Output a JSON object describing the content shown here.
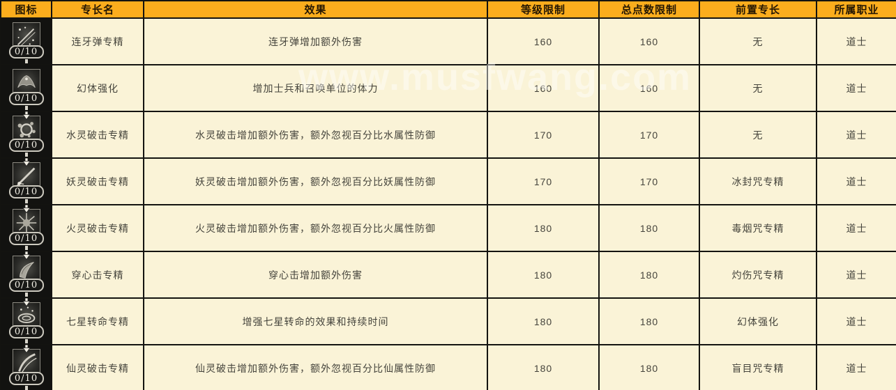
{
  "watermark": "www.musfwang.com",
  "colors": {
    "header_bg": "#fbad1d",
    "header_text": "#241703",
    "cell_bg": "#faf3d7",
    "cell_text": "#45443c",
    "border": "#131310",
    "icon_cell_bg": "#121210",
    "badge_text": "#f4f1e7"
  },
  "table": {
    "headers": [
      "图标",
      "专长名",
      "效果",
      "等级限制",
      "总点数限制",
      "前置专长",
      "所属职业"
    ],
    "rows": [
      {
        "icon": "spark-volley-icon",
        "arrow": false,
        "badge": "0/10",
        "name": "连牙弹专精",
        "effect": "连牙弹增加额外伤害",
        "level": "160",
        "points": "160",
        "prereq": "无",
        "job": "道士"
      },
      {
        "icon": "phantom-bat-icon",
        "arrow": false,
        "badge": "0/10",
        "name": "幻体强化",
        "effect": "增加士兵和召唤单位的体力",
        "level": "160",
        "points": "160",
        "prereq": "无",
        "job": "道士"
      },
      {
        "icon": "water-burst-icon",
        "arrow": true,
        "badge": "0/10",
        "name": "水灵破击专精",
        "effect": "水灵破击增加额外伤害，额外忽视百分比水属性防御",
        "level": "170",
        "points": "170",
        "prereq": "无",
        "job": "道士"
      },
      {
        "icon": "spirit-streak-icon",
        "arrow": true,
        "badge": "0/10",
        "name": "妖灵破击专精",
        "effect": "妖灵破击增加额外伤害，额外忽视百分比妖属性防御",
        "level": "170",
        "points": "170",
        "prereq": "冰封咒专精",
        "job": "道士"
      },
      {
        "icon": "fire-burst-icon",
        "arrow": true,
        "badge": "0/10",
        "name": "火灵破击专精",
        "effect": "火灵破击增加额外伤害，额外忽视百分比火属性防御",
        "level": "180",
        "points": "180",
        "prereq": "毒烟咒专精",
        "job": "道士"
      },
      {
        "icon": "pierce-horn-icon",
        "arrow": true,
        "badge": "0/10",
        "name": "穿心击专精",
        "effect": "穿心击增加额外伤害",
        "level": "180",
        "points": "180",
        "prereq": "灼伤咒专精",
        "job": "道士"
      },
      {
        "icon": "vortex-icon",
        "arrow": true,
        "badge": "0/10",
        "name": "七星转命专精",
        "effect": "增强七星转命的效果和持续时间",
        "level": "180",
        "points": "180",
        "prereq": "幻体强化",
        "job": "道士"
      },
      {
        "icon": "fairy-slash-icon",
        "arrow": true,
        "badge": "0/10",
        "name": "仙灵破击专精",
        "effect": "仙灵破击增加额外伤害，额外忽视百分比仙属性防御",
        "level": "180",
        "points": "180",
        "prereq": "盲目咒专精",
        "job": "道士"
      }
    ]
  }
}
